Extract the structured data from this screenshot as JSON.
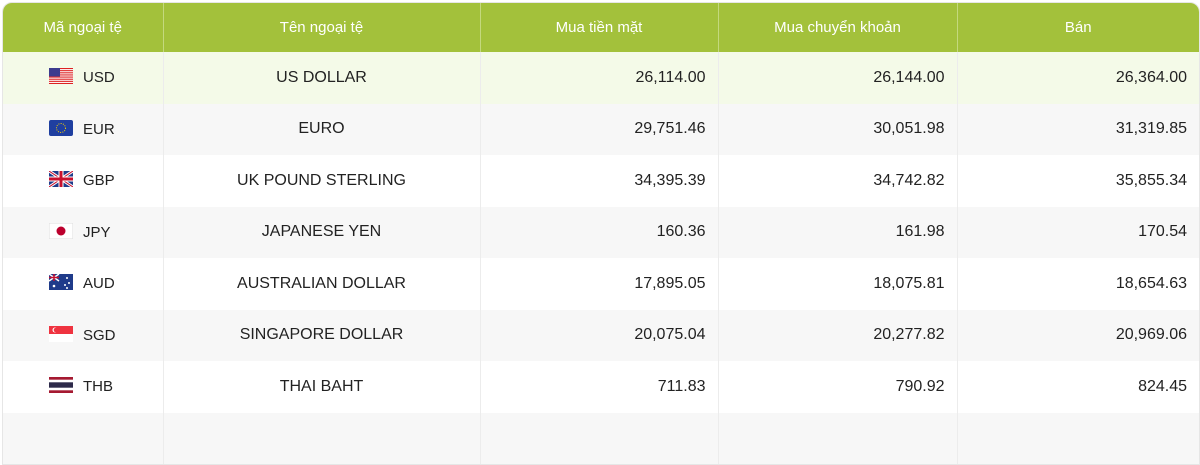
{
  "headers": [
    "Mã ngoại tệ",
    "Tên ngoại tệ",
    "Mua tiền mặt",
    "Mua chuyển khoản",
    "Bán"
  ],
  "rows": [
    {
      "code": "USD",
      "name": "US DOLLAR",
      "cash_buy": "26,114.00",
      "transfer_buy": "26,144.00",
      "sell": "26,364.00",
      "flag_icon": "us-flag"
    },
    {
      "code": "EUR",
      "name": "EURO",
      "cash_buy": "29,751.46",
      "transfer_buy": "30,051.98",
      "sell": "31,319.85",
      "flag_icon": "eu-flag"
    },
    {
      "code": "GBP",
      "name": "UK POUND STERLING",
      "cash_buy": "34,395.39",
      "transfer_buy": "34,742.82",
      "sell": "35,855.34",
      "flag_icon": "uk-flag"
    },
    {
      "code": "JPY",
      "name": "JAPANESE YEN",
      "cash_buy": "160.36",
      "transfer_buy": "161.98",
      "sell": "170.54",
      "flag_icon": "japan-flag"
    },
    {
      "code": "AUD",
      "name": "AUSTRALIAN DOLLAR",
      "cash_buy": "17,895.05",
      "transfer_buy": "18,075.81",
      "sell": "18,654.63",
      "flag_icon": "australia-flag"
    },
    {
      "code": "SGD",
      "name": "SINGAPORE DOLLAR",
      "cash_buy": "20,075.04",
      "transfer_buy": "20,277.82",
      "sell": "20,969.06",
      "flag_icon": "singapore-flag"
    },
    {
      "code": "THB",
      "name": "THAI BAHT",
      "cash_buy": "711.83",
      "transfer_buy": "790.92",
      "sell": "824.45",
      "flag_icon": "thailand-flag"
    }
  ],
  "colors": {
    "header": "#a3c13b",
    "highlight_row": "#f4fae8",
    "alt_row": "#f7f7f7"
  }
}
